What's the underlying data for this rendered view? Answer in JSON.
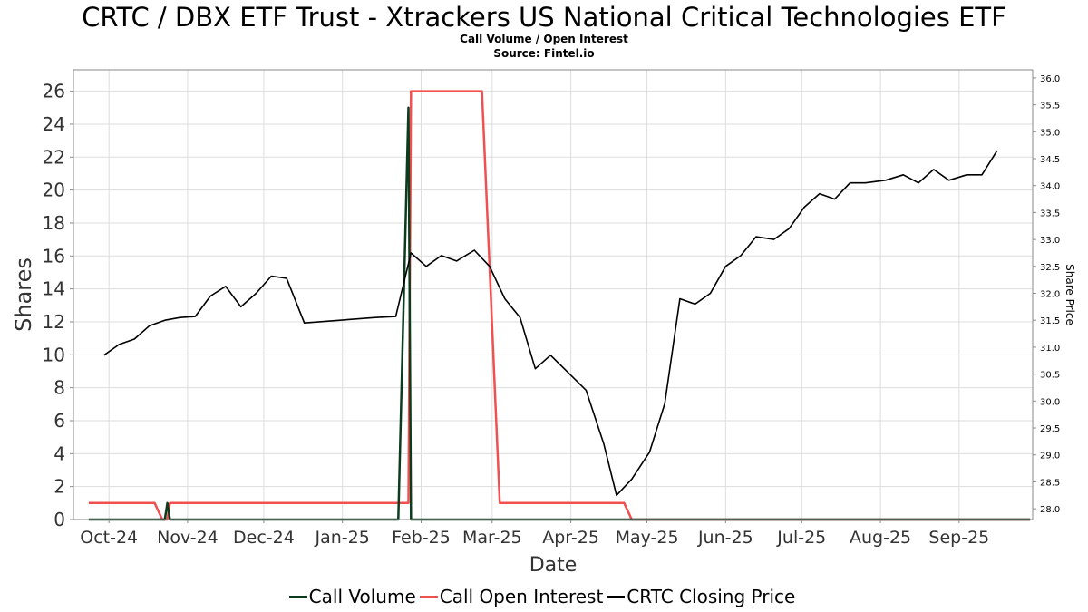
{
  "chart_data": {
    "type": "line",
    "title": "CRTC / DBX ETF Trust - Xtrackers US National Critical Technologies ETF",
    "subtitle": "Call Volume / Open Interest",
    "source": "Source: Fintel.io",
    "xlabel": "Date",
    "ylabel": "Shares",
    "y2label": "Share Price",
    "xlim": [
      "2024-09-17",
      "2025-09-30"
    ],
    "ylim": [
      0,
      27.3
    ],
    "y2lim": [
      27.8,
      36.15
    ],
    "x_ticks": [
      {
        "label": "Oct-24",
        "date": "2024-10-01"
      },
      {
        "label": "Nov-24",
        "date": "2024-11-01"
      },
      {
        "label": "Dec-24",
        "date": "2024-12-01"
      },
      {
        "label": "Jan-25",
        "date": "2025-01-01"
      },
      {
        "label": "Feb-25",
        "date": "2025-02-01"
      },
      {
        "label": "Mar-25",
        "date": "2025-03-01"
      },
      {
        "label": "Apr-25",
        "date": "2025-04-01"
      },
      {
        "label": "May-25",
        "date": "2025-05-01"
      },
      {
        "label": "Jun-25",
        "date": "2025-06-01"
      },
      {
        "label": "Jul-25",
        "date": "2025-07-01"
      },
      {
        "label": "Aug-25",
        "date": "2025-08-01"
      },
      {
        "label": "Sep-25",
        "date": "2025-09-01"
      }
    ],
    "y_ticks": [
      "0",
      "2",
      "4",
      "6",
      "8",
      "10",
      "12",
      "14",
      "16",
      "18",
      "20",
      "22",
      "24",
      "26"
    ],
    "y2_ticks": [
      "28.0",
      "28.5",
      "29.0",
      "29.5",
      "30.0",
      "30.5",
      "31.0",
      "31.5",
      "32.0",
      "32.5",
      "33.0",
      "33.5",
      "34.0",
      "34.5",
      "35.0",
      "35.5",
      "36.0"
    ],
    "grid": true,
    "legend_position": "bottom",
    "series": [
      {
        "name": "Call Volume",
        "color": "#0d3b1e",
        "axis": "left",
        "points": [
          [
            "2024-09-23",
            0
          ],
          [
            "2024-10-23",
            0
          ],
          [
            "2024-10-24",
            1
          ],
          [
            "2024-10-25",
            0
          ],
          [
            "2025-01-23",
            0
          ],
          [
            "2025-01-27",
            25
          ],
          [
            "2025-01-28",
            0
          ],
          [
            "2025-09-29",
            0
          ]
        ]
      },
      {
        "name": "Call Open Interest",
        "color": "#f05050",
        "axis": "left",
        "points": [
          [
            "2024-09-23",
            1
          ],
          [
            "2024-10-19",
            1
          ],
          [
            "2024-10-22",
            0
          ],
          [
            "2024-10-24",
            0
          ],
          [
            "2024-10-25",
            1
          ],
          [
            "2025-01-27",
            1
          ],
          [
            "2025-01-28",
            26
          ],
          [
            "2025-02-25",
            26
          ],
          [
            "2025-03-04",
            1
          ],
          [
            "2025-04-22",
            1
          ],
          [
            "2025-04-25",
            0
          ],
          [
            "2025-09-29",
            0
          ]
        ]
      },
      {
        "name": "CRTC Closing Price",
        "color": "#000000",
        "axis": "right",
        "points": [
          [
            "2024-09-29",
            30.85
          ],
          [
            "2024-10-05",
            31.05
          ],
          [
            "2024-10-11",
            31.15
          ],
          [
            "2024-10-17",
            31.4
          ],
          [
            "2024-10-23",
            31.5
          ],
          [
            "2024-10-29",
            31.55
          ],
          [
            "2024-11-04",
            31.57
          ],
          [
            "2024-11-10",
            31.95
          ],
          [
            "2024-11-16",
            32.13
          ],
          [
            "2024-11-22",
            31.75
          ],
          [
            "2024-11-28",
            32.0
          ],
          [
            "2024-12-04",
            32.32
          ],
          [
            "2024-12-10",
            32.28
          ],
          [
            "2024-12-17",
            31.45
          ],
          [
            "2025-01-14",
            31.55
          ],
          [
            "2025-01-22",
            31.57
          ],
          [
            "2025-01-28",
            32.75
          ],
          [
            "2025-02-03",
            32.5
          ],
          [
            "2025-02-09",
            32.7
          ],
          [
            "2025-02-15",
            32.6
          ],
          [
            "2025-02-22",
            32.8
          ],
          [
            "2025-02-28",
            32.5
          ],
          [
            "2025-03-06",
            31.9
          ],
          [
            "2025-03-12",
            31.55
          ],
          [
            "2025-03-18",
            30.6
          ],
          [
            "2025-03-24",
            30.85
          ],
          [
            "2025-04-07",
            30.2
          ],
          [
            "2025-04-14",
            29.2
          ],
          [
            "2025-04-19",
            28.25
          ],
          [
            "2025-04-25",
            28.55
          ],
          [
            "2025-05-02",
            29.05
          ],
          [
            "2025-05-08",
            29.95
          ],
          [
            "2025-05-14",
            31.9
          ],
          [
            "2025-05-20",
            31.8
          ],
          [
            "2025-05-26",
            32.0
          ],
          [
            "2025-06-01",
            32.5
          ],
          [
            "2025-06-07",
            32.7
          ],
          [
            "2025-06-13",
            33.05
          ],
          [
            "2025-06-20",
            33.0
          ],
          [
            "2025-06-26",
            33.2
          ],
          [
            "2025-07-02",
            33.6
          ],
          [
            "2025-07-08",
            33.85
          ],
          [
            "2025-07-14",
            33.75
          ],
          [
            "2025-07-20",
            34.05
          ],
          [
            "2025-07-26",
            34.05
          ],
          [
            "2025-08-03",
            34.1
          ],
          [
            "2025-08-10",
            34.2
          ],
          [
            "2025-08-16",
            34.05
          ],
          [
            "2025-08-22",
            34.3
          ],
          [
            "2025-08-28",
            34.1
          ],
          [
            "2025-09-04",
            34.2
          ],
          [
            "2025-09-10",
            34.2
          ],
          [
            "2025-09-16",
            34.65
          ]
        ]
      }
    ]
  }
}
